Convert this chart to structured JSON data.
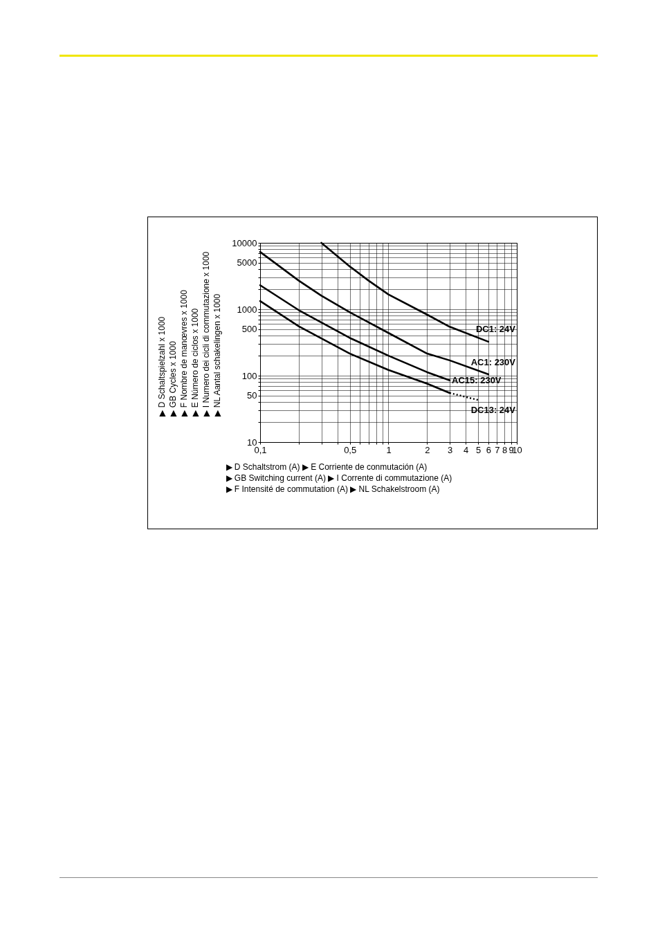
{
  "chart_data": {
    "type": "line",
    "xlabel": "▶ D     Schaltstrom (A)                                    ▶ E     Corriente de conmutación (A)\n▶ GB   Switching current (A)                          ▶ I      Corrente di commutazione (A)\n▶ F     Intensité de commutation (A)              ▶ NL   Schakelstroom (A)",
    "ylabel": "▶ D     Schaltspielzahl x 1000\n▶ GB   Cycles x 1000\n▶ F     Nombre de manœvres x 1000\n▶ E     Número de ciclos x 1000\n▶ I      Numero dei cicli di commutazione x 1000\n▶ NL   Aantal schakelingen x 1000",
    "log": "xy",
    "grid": true,
    "line_style": "solid",
    "xlim": [
      0.1,
      10
    ],
    "ylim": [
      10,
      10000
    ],
    "xticks": [
      {
        "value": 0.1,
        "label": "0,1"
      },
      {
        "value": 0.2,
        "label": null
      },
      {
        "value": 0.3,
        "label": null
      },
      {
        "value": 0.4,
        "label": null
      },
      {
        "value": 0.5,
        "label": "0,5"
      },
      {
        "value": 0.6,
        "label": null
      },
      {
        "value": 0.7,
        "label": null
      },
      {
        "value": 0.8,
        "label": null
      },
      {
        "value": 0.9,
        "label": null
      },
      1,
      2,
      3,
      4,
      5,
      6,
      7,
      8,
      9,
      10
    ],
    "yticks": [
      10,
      {
        "value": 20,
        "label": null
      },
      {
        "value": 30,
        "label": null
      },
      {
        "value": 40,
        "label": null
      },
      50,
      {
        "value": 60,
        "label": null
      },
      {
        "value": 70,
        "label": null
      },
      {
        "value": 80,
        "label": null
      },
      {
        "value": 90,
        "label": null
      },
      100,
      {
        "value": 200,
        "label": null
      },
      {
        "value": 300,
        "label": null
      },
      {
        "value": 400,
        "label": null
      },
      500,
      {
        "value": 600,
        "label": null
      },
      {
        "value": 700,
        "label": null
      },
      {
        "value": 800,
        "label": null
      },
      {
        "value": 900,
        "label": null
      },
      1000,
      {
        "value": 2000,
        "label": null
      },
      {
        "value": 3000,
        "label": null
      },
      {
        "value": 4000,
        "label": null
      },
      5000,
      {
        "value": 6000,
        "label": null
      },
      {
        "value": 7000,
        "label": null
      },
      {
        "value": 8000,
        "label": null
      },
      {
        "value": 9000,
        "label": null
      },
      10000
    ],
    "series": [
      {
        "name": "DC1: 24V",
        "color": "#000000",
        "x": [
          0.3,
          0.5,
          0.7,
          1,
          2,
          3,
          6
        ],
        "values": [
          10000,
          4400,
          2700,
          1670,
          830,
          545,
          325
        ]
      },
      {
        "name": "AC1: 230V",
        "color": "#000000",
        "x": [
          0.1,
          0.2,
          0.3,
          0.5,
          1,
          2,
          3,
          6
        ],
        "values": [
          7300,
          2700,
          1600,
          900,
          440,
          215,
          170,
          105
        ]
      },
      {
        "name": "AC15: 230V",
        "color": "#000000",
        "x": [
          0.1,
          0.2,
          0.5,
          1,
          2,
          3
        ],
        "values": [
          2300,
          970,
          370,
          200,
          113,
          85
        ]
      },
      {
        "name": "DC13: 24V",
        "color": "#000000",
        "x": [
          0.1,
          0.2,
          0.5,
          1,
          2,
          3
        ],
        "values": [
          1330,
          555,
          215,
          122,
          76,
          55
        ]
      },
      {
        "color": "#000000",
        "line_style": "dotted",
        "x": [
          3,
          5
        ],
        "values": [
          55,
          43
        ]
      }
    ]
  }
}
